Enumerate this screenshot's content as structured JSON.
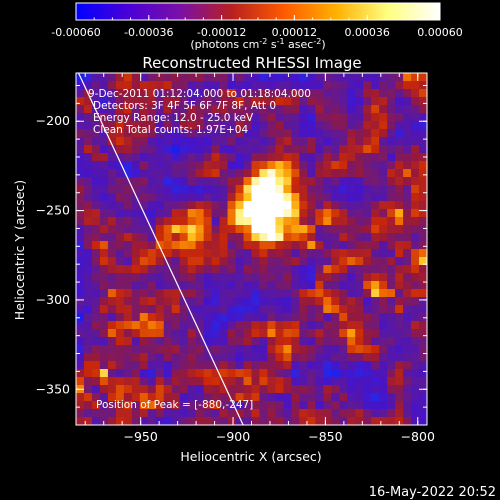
{
  "colorbar": {
    "ticks": [
      "-0.00060",
      "-0.00036",
      "-0.00012",
      "0.00012",
      "0.00036",
      "0.00060"
    ],
    "units_main": "(photons cm",
    "units_exp1": "-2",
    "units_mid": " s",
    "units_exp2": "-1",
    "units_mid2": " asec",
    "units_exp3": "-2",
    "units_end": ")",
    "gradient_colors": [
      "#0000ff",
      "#4a00d8",
      "#7a10a8",
      "#b82020",
      "#ff5a00",
      "#ffb000",
      "#ffff80",
      "#ffffff"
    ]
  },
  "chart_data": {
    "type": "heatmap",
    "title": "Reconstructed RHESSI Image",
    "xlabel": "Heliocentric X (arcsec)",
    "ylabel": "Heliocentric Y (arcsec)",
    "xlim": [
      -985,
      -795
    ],
    "ylim": [
      -370,
      -173
    ],
    "xticks": [
      -950,
      -900,
      -850,
      -800
    ],
    "yticks": [
      -200,
      -250,
      -300,
      -350
    ],
    "peak": {
      "x": -880,
      "y": -247
    },
    "limb_line": [
      [
        -985,
        -170
      ],
      [
        -890,
        -380
      ]
    ],
    "color_range": [
      -0.0006,
      0.0006
    ],
    "info_lines": [
      "9-Dec-2011 01:12:04.000 to 01:18:04.000",
      "Detectors: 3F 4F 5F 6F 7F 8F, Att 0",
      "Energy Range: 12.0 - 25.0 keV",
      "Clean    Total counts: 1.97E+04"
    ],
    "peak_label": "Position of Peak = [-880,-247]"
  },
  "footer": {
    "timestamp": "16-May-2022 20:52"
  }
}
